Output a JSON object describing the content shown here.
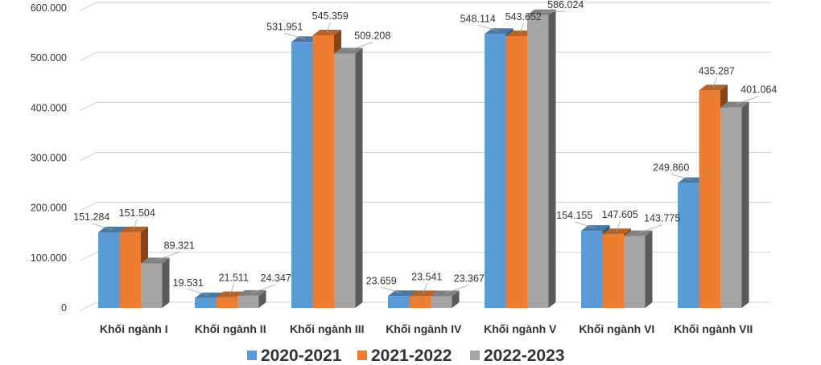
{
  "chart_data": {
    "type": "bar",
    "categories": [
      "Khối ngành I",
      "Khối ngành II",
      "Khối ngành III",
      "Khối ngành IV",
      "Khối ngành V",
      "Khối ngành VI",
      "Khối ngành VII"
    ],
    "series": [
      {
        "name": "2020-2021",
        "color": "#5b9bd5",
        "values": [
          151284,
          19531,
          531951,
          23659,
          548114,
          154155,
          249860
        ],
        "labels": [
          "151.284",
          "19.531",
          "531.951",
          "23.659",
          "548.114",
          "154.155",
          "249.860"
        ]
      },
      {
        "name": "2021-2022",
        "color": "#ed7d31",
        "values": [
          151504,
          21511,
          545359,
          23541,
          543652,
          147605,
          435287
        ],
        "labels": [
          "151.504",
          "21.511",
          "545.359",
          "23.541",
          "543.652",
          "147.605",
          "435.287"
        ]
      },
      {
        "name": "2022-2023",
        "color": "#a5a5a5",
        "values": [
          89321,
          24347,
          509208,
          23367,
          586024,
          143775,
          401064
        ],
        "labels": [
          "89.321",
          "24.347",
          "509.208",
          "23.367",
          "586.024",
          "143.775",
          "401.064"
        ]
      }
    ],
    "y_ticks": [
      {
        "value": 0,
        "label": "0"
      },
      {
        "value": 100000,
        "label": "100.000"
      },
      {
        "value": 200000,
        "label": "200.000"
      },
      {
        "value": 300000,
        "label": "300.000"
      },
      {
        "value": 400000,
        "label": "400.000"
      },
      {
        "value": 500000,
        "label": "500.000"
      },
      {
        "value": 600000,
        "label": "600.000"
      }
    ],
    "ylim": [
      0,
      600000
    ],
    "grid": true,
    "legend_position": "bottom",
    "style": "3d-clustered-column"
  }
}
